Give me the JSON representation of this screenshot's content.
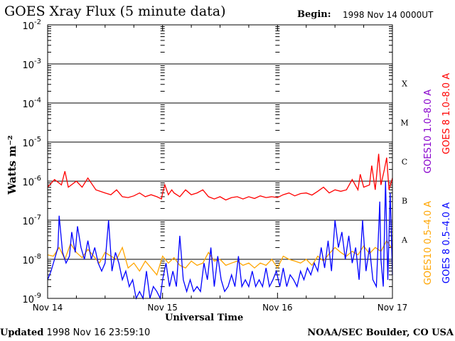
{
  "header": {
    "title": "GOES Xray Flux (5 minute data)",
    "begin_label": "Begin:",
    "begin_value": "1998 Nov 14 0000UT"
  },
  "footer": {
    "updated_label": "Updated",
    "updated_value": "1998 Nov 16 23:59:10",
    "credit": "NOAA/SEC Boulder, CO USA"
  },
  "colors": {
    "goes8_long": "#ff0000",
    "goes10_long": "#8800cc",
    "goes10_short": "#ffa500",
    "goes8_short": "#0000ff",
    "grid": "#000000"
  },
  "chart_data": {
    "type": "line",
    "title": "GOES Xray Flux (5 minute data)",
    "xlabel": "Universal Time",
    "ylabel": "Watts m⁻²",
    "y_scale": "log",
    "ylim": [
      1e-09,
      0.01
    ],
    "y_ticks": [
      {
        "base": "10",
        "exp": "-9",
        "value": 1e-09
      },
      {
        "base": "10",
        "exp": "-8",
        "value": 1e-08
      },
      {
        "base": "10",
        "exp": "-7",
        "value": 1e-07
      },
      {
        "base": "10",
        "exp": "-6",
        "value": 1e-06
      },
      {
        "base": "10",
        "exp": "-5",
        "value": 1e-05
      },
      {
        "base": "10",
        "exp": "-4",
        "value": 0.0001
      },
      {
        "base": "10",
        "exp": "-3",
        "value": 0.001
      },
      {
        "base": "10",
        "exp": "-2",
        "value": 0.01
      }
    ],
    "x_ticks": [
      "Nov 14",
      "Nov 15",
      "Nov 16",
      "Nov 17"
    ],
    "xlim_days": [
      0,
      3
    ],
    "flare_classes": [
      {
        "label": "A",
        "lower": 1e-08
      },
      {
        "label": "B",
        "lower": 1e-07
      },
      {
        "label": "C",
        "lower": 1e-06
      },
      {
        "label": "M",
        "lower": 1e-05
      },
      {
        "label": "X",
        "lower": 0.0001
      }
    ],
    "legend": [
      {
        "name": "GOES10 1.0–8.0 A",
        "color": "#8800cc"
      },
      {
        "name": "GOES 8 1.0–8.0 A",
        "color": "#ff0000"
      },
      {
        "name": "GOES10 0.5–4.0 A",
        "color": "#ffa500"
      },
      {
        "name": "GOES 8 0.5–4.0 A",
        "color": "#0000ff"
      }
    ],
    "series": [
      {
        "name": "GOES 8 1.0–8.0 A",
        "color": "#ff0000",
        "x_days": [
          0,
          0.06,
          0.12,
          0.15,
          0.18,
          0.25,
          0.3,
          0.35,
          0.42,
          0.5,
          0.55,
          0.6,
          0.65,
          0.7,
          0.75,
          0.8,
          0.85,
          0.9,
          0.95,
          0.99,
          1.0,
          1.02,
          1.05,
          1.08,
          1.1,
          1.15,
          1.2,
          1.25,
          1.3,
          1.35,
          1.4,
          1.45,
          1.5,
          1.55,
          1.6,
          1.65,
          1.7,
          1.75,
          1.8,
          1.85,
          1.9,
          1.95,
          2.0,
          2.05,
          2.1,
          2.15,
          2.2,
          2.25,
          2.3,
          2.35,
          2.4,
          2.45,
          2.5,
          2.55,
          2.6,
          2.65,
          2.7,
          2.72,
          2.75,
          2.8,
          2.82,
          2.85,
          2.88,
          2.9,
          2.93,
          2.95,
          2.97,
          3.0
        ],
        "values": [
          7e-07,
          1.1e-06,
          8e-07,
          1.8e-06,
          7e-07,
          1e-06,
          7e-07,
          1.2e-06,
          6e-07,
          5e-07,
          4.5e-07,
          6e-07,
          4e-07,
          3.8e-07,
          4.2e-07,
          5e-07,
          4e-07,
          4.5e-07,
          4e-07,
          3.5e-07,
          5e-07,
          8e-07,
          4.5e-07,
          6e-07,
          5e-07,
          4e-07,
          6e-07,
          4.5e-07,
          5e-07,
          6e-07,
          4e-07,
          3.5e-07,
          4e-07,
          3.3e-07,
          3.8e-07,
          4e-07,
          3.5e-07,
          4e-07,
          3.6e-07,
          4.2e-07,
          3.8e-07,
          4e-07,
          3.8e-07,
          4.5e-07,
          5e-07,
          4.2e-07,
          4.8e-07,
          5e-07,
          4.4e-07,
          5.5e-07,
          7e-07,
          5e-07,
          6e-07,
          5.5e-07,
          6e-07,
          1.1e-06,
          6e-07,
          1.5e-06,
          7e-07,
          8e-07,
          2.5e-06,
          6e-07,
          5e-06,
          8e-07,
          2e-06,
          4e-06,
          6e-07,
          1.2e-06
        ]
      },
      {
        "name": "GOES10 0.5–4.0 A",
        "color": "#ffa500",
        "x_days": [
          0,
          0.05,
          0.1,
          0.15,
          0.2,
          0.25,
          0.3,
          0.35,
          0.4,
          0.45,
          0.5,
          0.55,
          0.6,
          0.65,
          0.7,
          0.75,
          0.8,
          0.85,
          0.9,
          0.95,
          1.0,
          1.05,
          1.1,
          1.15,
          1.2,
          1.25,
          1.3,
          1.35,
          1.4,
          1.45,
          1.5,
          1.55,
          1.6,
          1.65,
          1.7,
          1.75,
          1.8,
          1.85,
          1.9,
          1.95,
          2.0,
          2.05,
          2.1,
          2.15,
          2.2,
          2.25,
          2.3,
          2.35,
          2.4,
          2.45,
          2.5,
          2.55,
          2.6,
          2.65,
          2.7,
          2.75,
          2.8,
          2.85,
          2.9,
          2.95,
          3.0
        ],
        "values": [
          1.3e-08,
          1.2e-08,
          2e-08,
          1e-08,
          2.5e-08,
          1.5e-08,
          1.1e-08,
          1.8e-08,
          1.2e-08,
          8e-09,
          1.5e-08,
          1.2e-08,
          1e-08,
          2e-08,
          6e-09,
          8e-09,
          5e-09,
          9e-09,
          6e-09,
          4e-09,
          1.2e-08,
          8e-09,
          1.1e-08,
          7e-09,
          6e-09,
          9e-09,
          7e-09,
          8e-09,
          1.5e-08,
          9e-09,
          1e-08,
          7e-09,
          8e-09,
          9e-09,
          7e-09,
          8e-09,
          6e-09,
          8e-09,
          7e-09,
          1e-08,
          6e-09,
          1.2e-08,
          1e-08,
          9e-09,
          8e-09,
          1e-08,
          7e-09,
          1.2e-08,
          9e-09,
          1.4e-08,
          2e-08,
          1.5e-08,
          1.2e-08,
          1.6e-08,
          1.3e-08,
          2.2e-08,
          1.4e-08,
          2e-08,
          1.6e-08,
          3e-08,
          1.8e-08
        ]
      },
      {
        "name": "GOES 8 0.5–4.0 A",
        "color": "#0000ff",
        "x_days": [
          0,
          0.03,
          0.06,
          0.09,
          0.1,
          0.13,
          0.16,
          0.19,
          0.21,
          0.24,
          0.26,
          0.29,
          0.32,
          0.35,
          0.38,
          0.41,
          0.44,
          0.47,
          0.5,
          0.53,
          0.56,
          0.59,
          0.62,
          0.65,
          0.68,
          0.71,
          0.74,
          0.77,
          0.8,
          0.83,
          0.86,
          0.89,
          0.92,
          0.95,
          0.98,
          1.0,
          1.03,
          1.06,
          1.09,
          1.12,
          1.15,
          1.18,
          1.21,
          1.24,
          1.27,
          1.3,
          1.33,
          1.36,
          1.39,
          1.42,
          1.45,
          1.48,
          1.51,
          1.54,
          1.57,
          1.6,
          1.63,
          1.66,
          1.69,
          1.72,
          1.75,
          1.78,
          1.81,
          1.84,
          1.87,
          1.9,
          1.93,
          1.96,
          1.99,
          2.02,
          2.05,
          2.08,
          2.11,
          2.14,
          2.17,
          2.2,
          2.23,
          2.26,
          2.29,
          2.32,
          2.35,
          2.38,
          2.41,
          2.44,
          2.47,
          2.5,
          2.53,
          2.56,
          2.59,
          2.62,
          2.65,
          2.68,
          2.71,
          2.74,
          2.77,
          2.8,
          2.83,
          2.86,
          2.89,
          2.9,
          2.92,
          2.94,
          2.96,
          2.98,
          3.0
        ],
        "values": [
          3e-09,
          5e-09,
          1e-08,
          2e-08,
          1.3e-07,
          1.5e-08,
          8e-09,
          1.2e-08,
          5e-08,
          1.5e-08,
          7e-08,
          2e-08,
          1e-08,
          3e-08,
          1e-08,
          2e-08,
          8e-09,
          5e-09,
          8e-09,
          1e-07,
          5e-09,
          1.5e-08,
          8e-09,
          3e-09,
          5e-09,
          2e-09,
          3e-09,
          1e-09,
          1.5e-09,
          1e-09,
          5e-09,
          1e-09,
          2e-09,
          1.5e-09,
          1e-09,
          3e-09,
          8e-09,
          2e-09,
          5e-09,
          2e-09,
          4e-08,
          3e-09,
          1.5e-09,
          3e-09,
          1.5e-09,
          2e-09,
          1.5e-09,
          8e-09,
          3e-09,
          2e-08,
          2e-09,
          1.2e-08,
          3e-09,
          1.5e-09,
          2e-09,
          4e-09,
          2e-09,
          1.2e-08,
          2e-09,
          3e-09,
          2e-09,
          5e-09,
          2e-09,
          3e-09,
          2e-09,
          6e-09,
          2e-09,
          3e-09,
          5e-09,
          2e-09,
          6e-09,
          2e-09,
          4e-09,
          3e-09,
          2e-09,
          5e-09,
          3e-09,
          6e-09,
          4e-09,
          8e-09,
          5e-09,
          2e-08,
          6e-09,
          3e-08,
          5e-09,
          1e-07,
          2e-08,
          5e-08,
          1e-08,
          4e-08,
          8e-09,
          2e-08,
          3e-09,
          1e-07,
          5e-09,
          2e-08,
          3e-09,
          2e-09,
          3e-07,
          1e-08,
          2e-09,
          1e-06,
          3e-09,
          5e-07,
          4e-09
        ]
      }
    ]
  }
}
